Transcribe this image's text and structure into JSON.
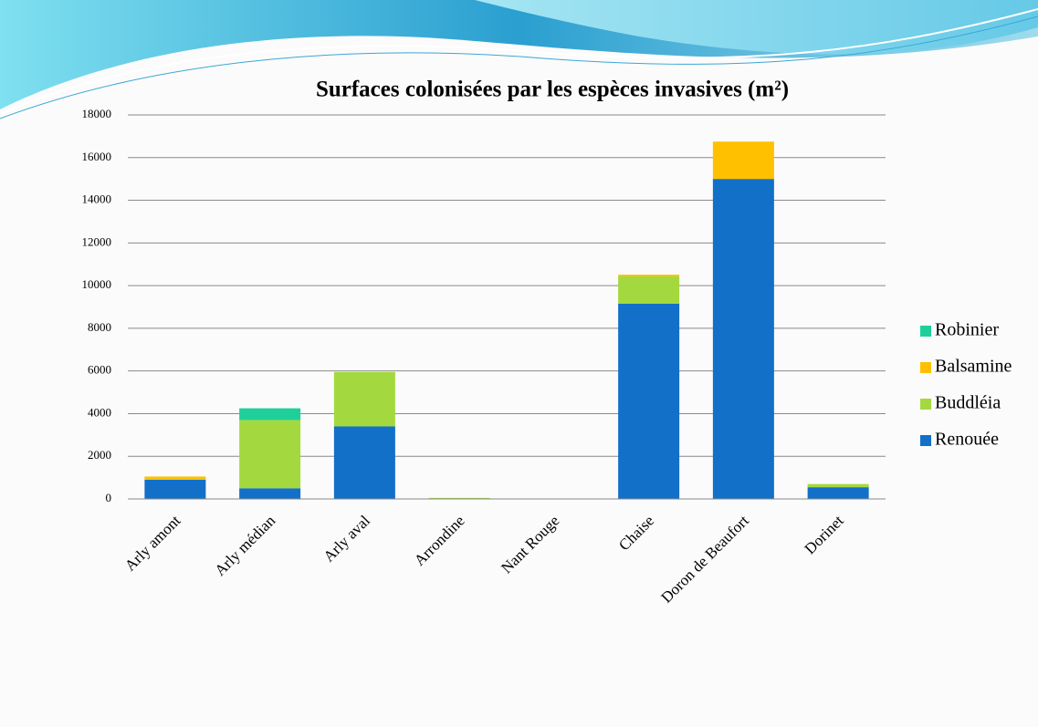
{
  "chart_data": {
    "type": "stacked_bar",
    "title": "Surfaces colonisées par les espèces invasives (m²)",
    "categories": [
      "Arly amont",
      "Arly médian",
      "Arly aval",
      "Arrondine",
      "Nant Rouge",
      "Chaise",
      "Doron de Beaufort",
      "Dorinet"
    ],
    "series": [
      {
        "name": "Renouée",
        "color": "#1270c8",
        "values": [
          900,
          500,
          3400,
          0,
          0,
          9150,
          15000,
          550
        ]
      },
      {
        "name": "Buddléia",
        "color": "#a3d93f",
        "values": [
          0,
          3200,
          2550,
          50,
          0,
          1280,
          0,
          150
        ]
      },
      {
        "name": "Balsamine",
        "color": "#ffc000",
        "values": [
          150,
          0,
          0,
          0,
          0,
          80,
          1750,
          0
        ]
      },
      {
        "name": "Robinier",
        "color": "#1fcf9a",
        "values": [
          0,
          550,
          0,
          0,
          0,
          0,
          0,
          0
        ]
      }
    ],
    "ylim": [
      0,
      18000
    ],
    "yticks": [
      0,
      2000,
      4000,
      6000,
      8000,
      10000,
      12000,
      14000,
      16000,
      18000
    ],
    "grid": true,
    "legend": "right"
  }
}
